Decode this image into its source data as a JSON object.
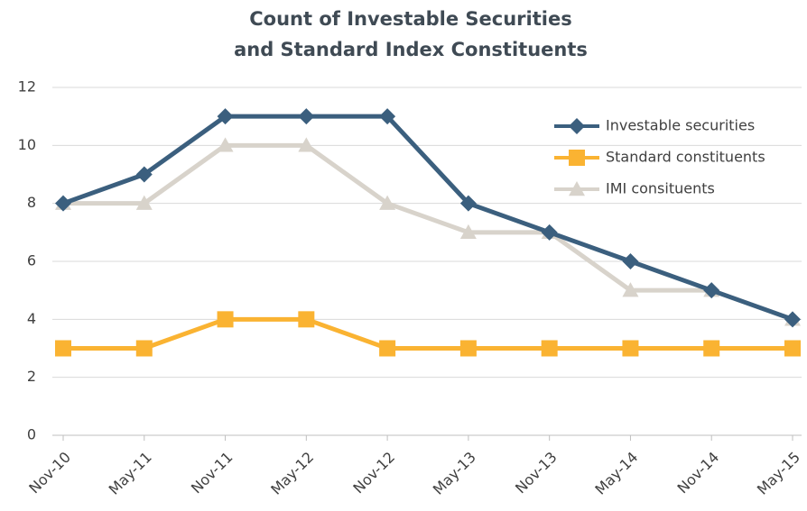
{
  "chart_data": {
    "type": "line",
    "title": [
      "Count of Investable Securities",
      "and Standard Index Constituents"
    ],
    "categories": [
      "Nov-10",
      "May-11",
      "Nov-11",
      "May-12",
      "Nov-12",
      "May-13",
      "Nov-13",
      "May-14",
      "Nov-14",
      "May-15"
    ],
    "series": [
      {
        "name": "Investable securities",
        "color": "#3b5f7e",
        "marker": "diamond",
        "values": [
          8,
          9,
          11,
          11,
          11,
          8,
          7,
          6,
          5,
          4
        ]
      },
      {
        "name": "Standard constituents",
        "color": "#fab332",
        "marker": "square",
        "values": [
          3,
          3,
          4,
          4,
          3,
          3,
          3,
          3,
          3,
          3
        ]
      },
      {
        "name": "IMI consituents",
        "color": "#d8d3cb",
        "marker": "triangle",
        "values": [
          8,
          8,
          10,
          10,
          8,
          7,
          7,
          5,
          5,
          4
        ]
      }
    ],
    "ylim": [
      0,
      12
    ],
    "yticks": [
      0,
      2,
      4,
      6,
      8,
      10,
      12
    ],
    "grid": true,
    "legend": "top-right"
  }
}
